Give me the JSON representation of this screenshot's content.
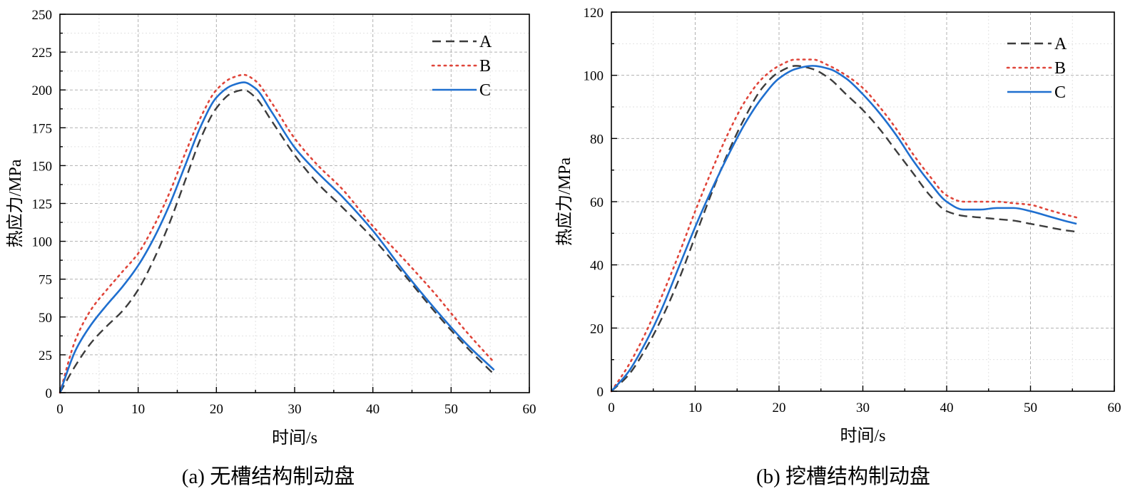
{
  "colors": {
    "A": "#3c3c3c",
    "B": "#e0453a",
    "C": "#1f6fcf"
  },
  "chart_data": [
    {
      "type": "line",
      "caption": "(a) 无槽结构制动盘",
      "xlabel": "时间/s",
      "ylabel": "热应力/MPa",
      "xlim": [
        0,
        60
      ],
      "ylim": [
        0,
        250
      ],
      "xticks": [
        0,
        10,
        20,
        30,
        40,
        50,
        60
      ],
      "yticks": [
        0,
        25,
        50,
        75,
        100,
        125,
        150,
        175,
        200,
        225,
        250
      ],
      "xtick_labels": [
        "0",
        "10",
        "20",
        "30",
        "40",
        "50",
        "60"
      ],
      "ytick_labels": [
        "0",
        "25",
        "50",
        "75",
        "100",
        "125",
        "150",
        "175",
        "200",
        "225",
        "250"
      ],
      "grid": true,
      "legend_position": "top-right",
      "series": [
        {
          "name": "A",
          "style": "dash",
          "x": [
            0,
            2,
            4,
            6,
            8,
            10,
            12,
            14,
            16,
            18,
            20,
            22,
            23.5,
            25,
            27,
            30,
            33,
            36,
            40,
            44,
            48,
            52,
            55.5
          ],
          "y": [
            0,
            18,
            33,
            44,
            54,
            68,
            88,
            112,
            140,
            168,
            188,
            198,
            200,
            195,
            180,
            157,
            138,
            123,
            102,
            78,
            53,
            30,
            12
          ]
        },
        {
          "name": "B",
          "style": "dot",
          "x": [
            0,
            2,
            4,
            6,
            8,
            10,
            12,
            14,
            16,
            18,
            20,
            22,
            23.5,
            25,
            27,
            30,
            33,
            36,
            40,
            44,
            48,
            52,
            55.5
          ],
          "y": [
            0,
            35,
            55,
            68,
            80,
            92,
            110,
            132,
            158,
            182,
            200,
            208,
            210,
            206,
            192,
            168,
            150,
            135,
            110,
            88,
            65,
            40,
            20
          ]
        },
        {
          "name": "C",
          "style": "solid",
          "x": [
            0,
            2,
            4,
            6,
            8,
            10,
            12,
            14,
            16,
            18,
            20,
            22,
            23.5,
            25,
            27,
            30,
            33,
            36,
            40,
            44,
            48,
            52,
            55.5
          ],
          "y": [
            0,
            28,
            45,
            58,
            70,
            84,
            102,
            124,
            150,
            176,
            195,
            203,
            205,
            201,
            186,
            162,
            145,
            130,
            107,
            80,
            55,
            32,
            15
          ]
        }
      ]
    },
    {
      "type": "line",
      "caption": "(b) 挖槽结构制动盘",
      "xlabel": "时间/s",
      "ylabel": "热应力/MPa",
      "xlim": [
        0,
        60
      ],
      "ylim": [
        0,
        120
      ],
      "xticks": [
        0,
        10,
        20,
        30,
        40,
        50,
        60
      ],
      "yticks": [
        0,
        20,
        40,
        60,
        80,
        100,
        120
      ],
      "xtick_labels": [
        "0",
        "10",
        "20",
        "30",
        "40",
        "50",
        "60"
      ],
      "ytick_labels": [
        "0",
        "20",
        "40",
        "60",
        "80",
        "100",
        "120"
      ],
      "grid": true,
      "legend_position": "top-right",
      "series": [
        {
          "name": "A",
          "style": "dash",
          "x": [
            0,
            2,
            4,
            6,
            8,
            10,
            12,
            14,
            16,
            18,
            20,
            22,
            24,
            26,
            28,
            30,
            32,
            34,
            36,
            38,
            40,
            42,
            44,
            46,
            48,
            50,
            52,
            54,
            55.5
          ],
          "y": [
            0,
            5,
            13,
            23,
            35,
            49,
            63,
            76,
            87,
            96,
            101,
            103,
            102,
            99,
            94,
            89,
            83,
            76,
            69,
            62,
            57,
            55.5,
            55,
            54.5,
            54,
            53,
            52,
            51,
            50.5
          ]
        },
        {
          "name": "B",
          "style": "dot",
          "x": [
            0,
            2,
            4,
            6,
            8,
            10,
            12,
            14,
            16,
            18,
            20,
            22,
            24,
            26,
            28,
            30,
            32,
            34,
            36,
            38,
            40,
            42,
            44,
            46,
            48,
            50,
            52,
            54,
            55.5
          ],
          "y": [
            0,
            8,
            18,
            30,
            43,
            57,
            70,
            82,
            92,
            99,
            103,
            105,
            105,
            103,
            100,
            96,
            90,
            83,
            75,
            68,
            62,
            60,
            60,
            60,
            59.5,
            59,
            57.5,
            56,
            55
          ]
        },
        {
          "name": "C",
          "style": "solid",
          "x": [
            0,
            2,
            4,
            6,
            8,
            10,
            12,
            14,
            16,
            18,
            20,
            22,
            24,
            26,
            28,
            30,
            32,
            34,
            36,
            38,
            40,
            42,
            44,
            46,
            48,
            50,
            52,
            54,
            55.5
          ],
          "y": [
            0,
            6,
            15,
            26,
            39,
            52,
            64,
            75,
            85,
            93,
            99,
            102,
            103,
            102,
            99,
            94,
            88,
            81,
            73,
            66,
            60,
            57.5,
            57.5,
            58,
            58,
            57,
            55.5,
            54,
            53
          ]
        }
      ]
    }
  ]
}
